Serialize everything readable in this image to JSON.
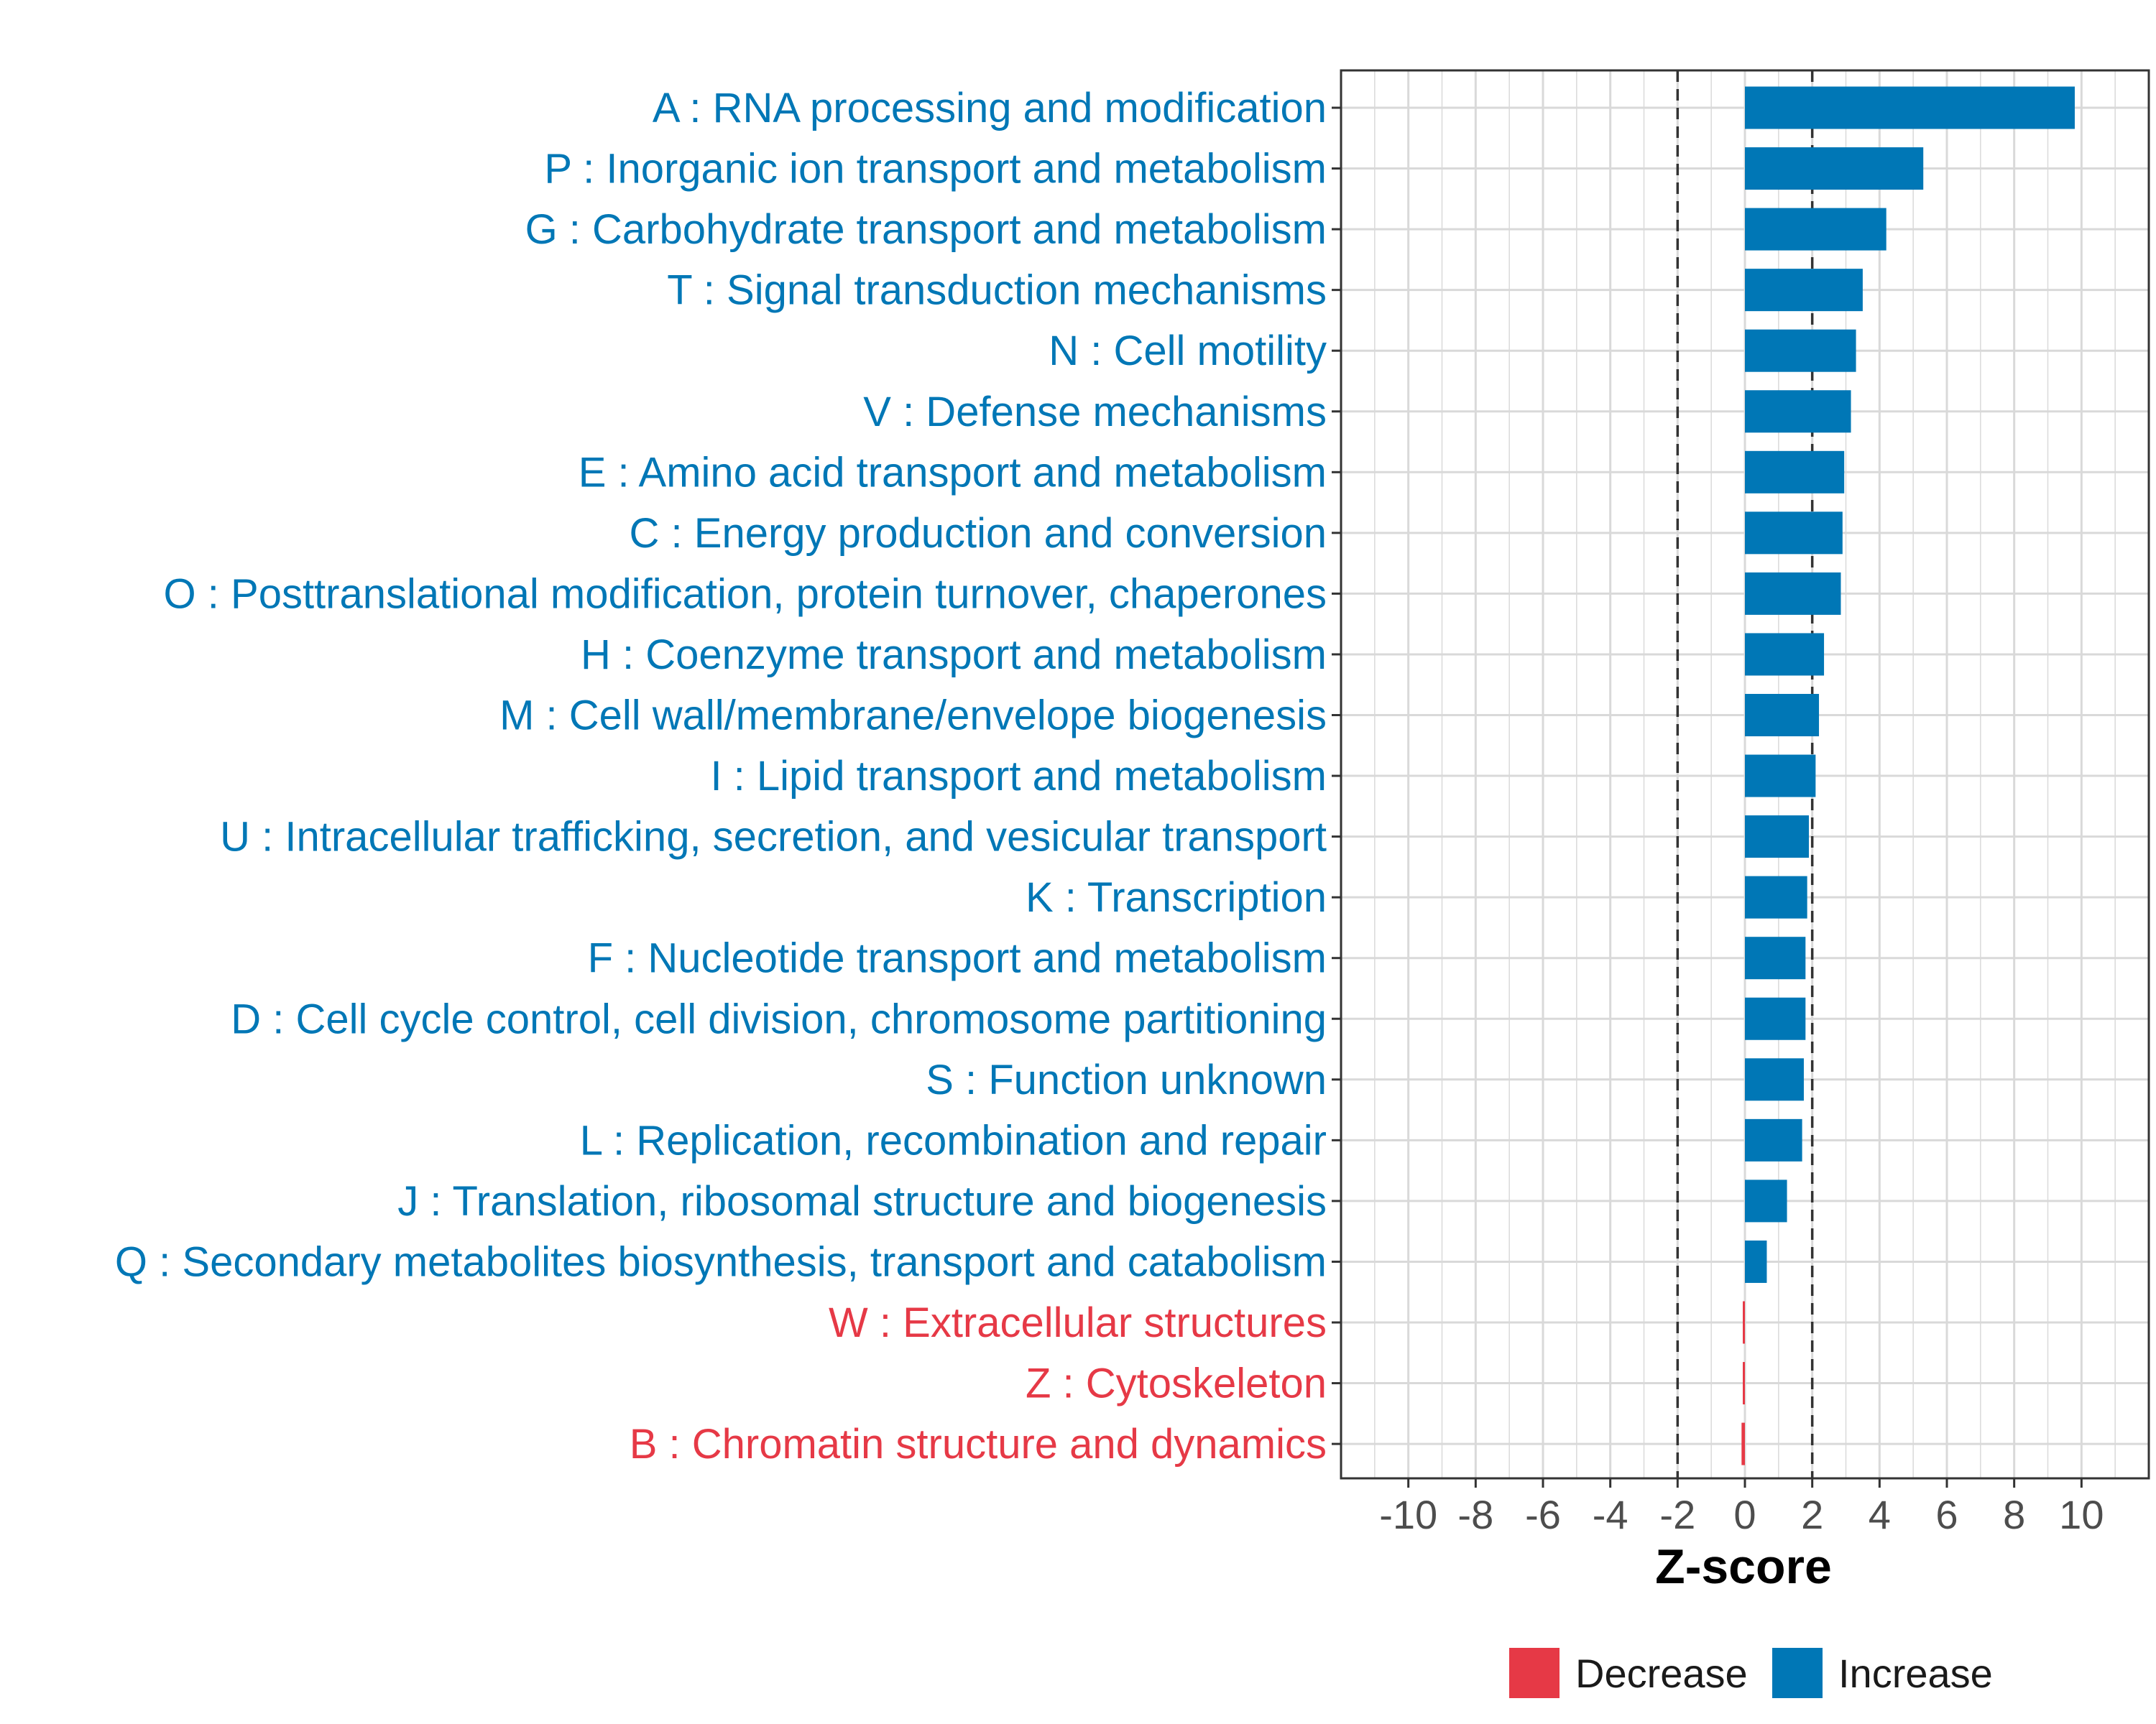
{
  "chart_data": {
    "type": "bar",
    "orientation": "horizontal",
    "xlabel": "Z-score",
    "xlim": [
      -12,
      12
    ],
    "xticks": [
      -10,
      -8,
      -6,
      -4,
      -2,
      0,
      2,
      4,
      6,
      8,
      10
    ],
    "xtick_labels": [
      "-10",
      "-8",
      "-6",
      "-4",
      "-2",
      "0",
      "2",
      "4",
      "6",
      "8",
      "10"
    ],
    "reference_lines": [
      -2,
      2
    ],
    "grid": true,
    "legend_position": "bottom",
    "legend": [
      {
        "name": "Decrease",
        "color": "#e63946"
      },
      {
        "name": "Increase",
        "color": "#0077b6"
      }
    ],
    "categories": [
      "A : RNA processing and modification",
      "P : Inorganic ion transport and metabolism",
      "G : Carbohydrate transport and metabolism",
      "T : Signal transduction mechanisms",
      "N : Cell motility",
      "V : Defense mechanisms",
      "E : Amino acid transport and metabolism",
      "C : Energy production and conversion",
      "O : Posttranslational modification, protein turnover, chaperones",
      "H : Coenzyme transport and metabolism",
      "M : Cell wall/membrane/envelope biogenesis",
      "I : Lipid transport and metabolism",
      "U : Intracellular trafficking, secretion, and vesicular transport",
      "K : Transcription",
      "F : Nucleotide transport and metabolism",
      "D : Cell cycle control, cell division, chromosome partitioning",
      "S : Function unknown",
      "L : Replication, recombination and repair",
      "J : Translation, ribosomal structure and biogenesis",
      "Q : Secondary metabolites biosynthesis, transport and catabolism",
      "W : Extracellular structures",
      "Z : Cytoskeleton",
      "B : Chromatin structure and dynamics"
    ],
    "values": [
      9.8,
      5.3,
      4.2,
      3.5,
      3.3,
      3.15,
      2.95,
      2.9,
      2.85,
      2.35,
      2.2,
      2.1,
      1.9,
      1.85,
      1.8,
      1.8,
      1.75,
      1.7,
      1.25,
      0.65,
      -0.05,
      -0.05,
      -0.1
    ],
    "groups": [
      "Increase",
      "Increase",
      "Increase",
      "Increase",
      "Increase",
      "Increase",
      "Increase",
      "Increase",
      "Increase",
      "Increase",
      "Increase",
      "Increase",
      "Increase",
      "Increase",
      "Increase",
      "Increase",
      "Increase",
      "Increase",
      "Increase",
      "Increase",
      "Decrease",
      "Decrease",
      "Decrease"
    ]
  }
}
